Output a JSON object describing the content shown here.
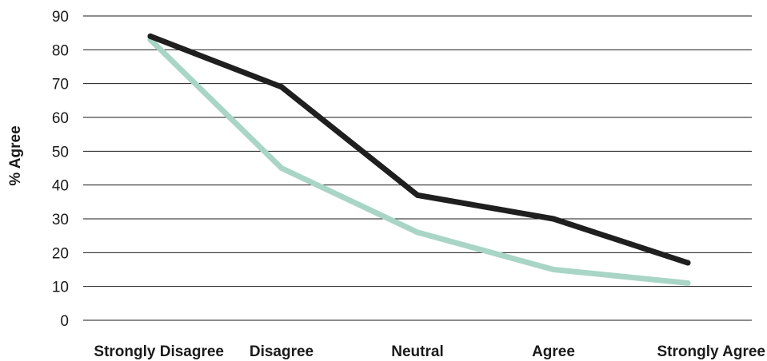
{
  "chart_data": {
    "type": "line",
    "title": "",
    "xlabel": "",
    "ylabel": "% Agree",
    "categories": [
      "Strongly Disagree",
      "Disagree",
      "Neutral",
      "Agree",
      "Strongly Agree"
    ],
    "ylim": [
      0,
      90
    ],
    "yticks": [
      0,
      10,
      20,
      30,
      40,
      50,
      60,
      70,
      80,
      90
    ],
    "grid": true,
    "legend": "none",
    "series": [
      {
        "values": [
          84,
          69,
          37,
          30,
          17
        ],
        "color": "#1f1f1f"
      },
      {
        "values": [
          83,
          45,
          26,
          15,
          11
        ],
        "color": "#a8d5c6"
      }
    ]
  }
}
